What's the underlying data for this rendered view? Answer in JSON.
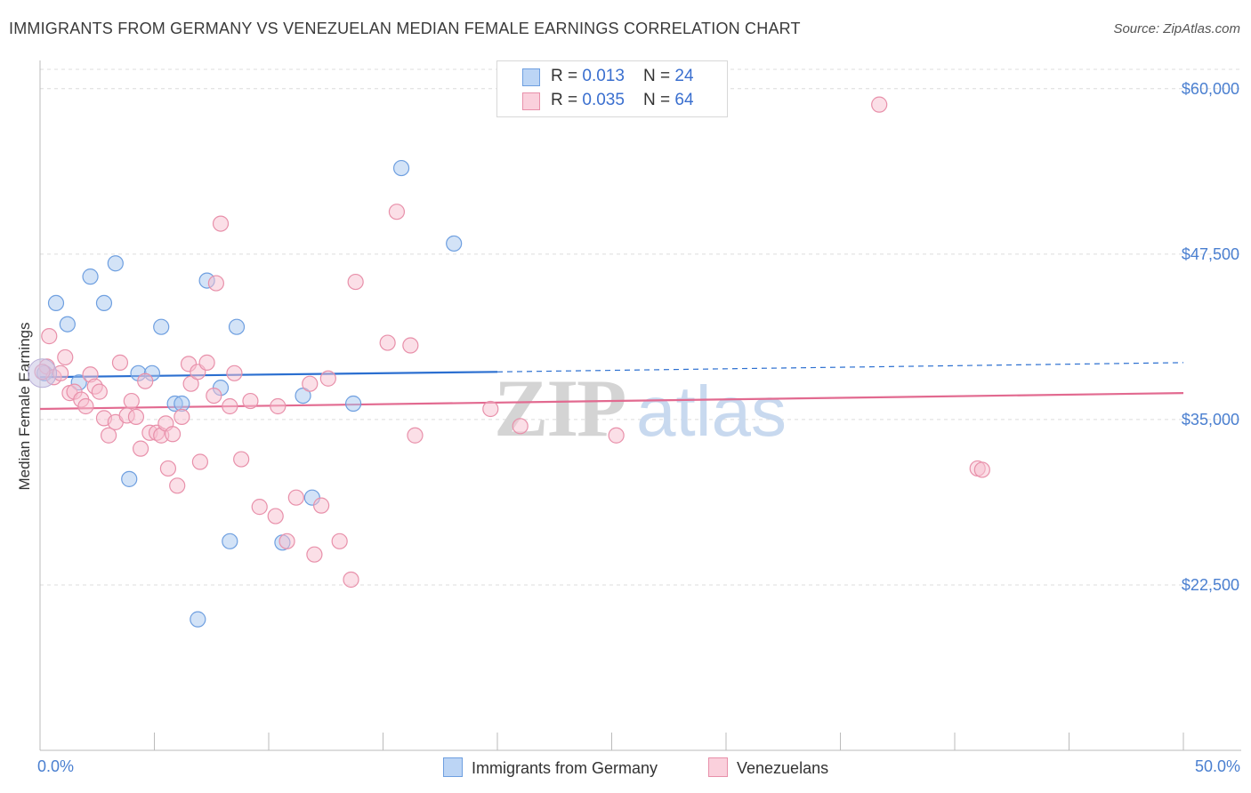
{
  "title": "IMMIGRANTS FROM GERMANY VS VENEZUELAN MEDIAN FEMALE EARNINGS CORRELATION CHART",
  "source": "Source: ZipAtlas.com",
  "watermark": {
    "zip": "ZIP",
    "atlas": "atlas"
  },
  "legend": {
    "rows": [
      {
        "r_label": "R = ",
        "r_value": "0.013",
        "n_label": "N = ",
        "n_value": "24",
        "color": "#a8c8f0",
        "border": "#6e9fe0"
      },
      {
        "r_label": "R = ",
        "r_value": "0.035",
        "n_label": "N = ",
        "n_value": "64",
        "color": "#f8c0d0",
        "border": "#e890aa"
      }
    ]
  },
  "bottom_legend": [
    {
      "label": "Immigrants from Germany",
      "color": "#bcd5f5",
      "border": "#6e9fe0"
    },
    {
      "label": "Venezuelans",
      "color": "#fad0dc",
      "border": "#e890aa"
    }
  ],
  "chart_data": {
    "type": "scatter",
    "title": "IMMIGRANTS FROM GERMANY VS VENEZUELAN MEDIAN FEMALE EARNINGS CORRELATION CHART",
    "xlabel": "",
    "ylabel": "Median Female Earnings",
    "xlim": [
      0,
      50
    ],
    "ylim": [
      10000,
      62000
    ],
    "x_tick_labels": [
      "0.0%",
      "50.0%"
    ],
    "y_ticks": [
      22500,
      35000,
      47500,
      60000
    ],
    "y_tick_labels": [
      "$22,500",
      "$35,000",
      "$47,500",
      "$60,000"
    ],
    "grid": true,
    "legend_position": "top-center",
    "series": [
      {
        "name": "Immigrants from Germany",
        "color": "#6e9fe0",
        "fill": "#a8c8f0",
        "trend": {
          "x": [
            0,
            20
          ],
          "y": [
            38200,
            38600
          ],
          "dashed_to": [
            50,
            39300
          ],
          "color": "#2b6fd0"
        },
        "points": [
          [
            0.2,
            38500
          ],
          [
            0.7,
            43800
          ],
          [
            1.2,
            42200
          ],
          [
            1.7,
            37800
          ],
          [
            2.2,
            45800
          ],
          [
            2.8,
            43800
          ],
          [
            3.3,
            46800
          ],
          [
            3.9,
            30500
          ],
          [
            4.3,
            38500
          ],
          [
            4.9,
            38500
          ],
          [
            5.3,
            42000
          ],
          [
            5.9,
            36200
          ],
          [
            6.2,
            36200
          ],
          [
            6.9,
            19900
          ],
          [
            7.3,
            45500
          ],
          [
            7.9,
            37400
          ],
          [
            8.3,
            25800
          ],
          [
            8.6,
            42000
          ],
          [
            10.6,
            25700
          ],
          [
            11.5,
            36800
          ],
          [
            11.9,
            29100
          ],
          [
            13.7,
            36200
          ],
          [
            15.8,
            54000
          ],
          [
            18.1,
            48300
          ]
        ]
      },
      {
        "name": "Venezuelans",
        "color": "#e890aa",
        "fill": "#f8c0d0",
        "trend": {
          "x": [
            0,
            50
          ],
          "y": [
            35800,
            37000
          ],
          "color": "#e26a90"
        },
        "points": [
          [
            0.3,
            39000
          ],
          [
            0.4,
            41300
          ],
          [
            0.6,
            38200
          ],
          [
            0.9,
            38500
          ],
          [
            1.1,
            39700
          ],
          [
            1.3,
            37000
          ],
          [
            1.5,
            37100
          ],
          [
            1.8,
            36500
          ],
          [
            2.0,
            36000
          ],
          [
            2.2,
            38400
          ],
          [
            2.4,
            37500
          ],
          [
            2.6,
            37100
          ],
          [
            2.8,
            35100
          ],
          [
            3.0,
            33800
          ],
          [
            3.3,
            34800
          ],
          [
            3.5,
            39300
          ],
          [
            3.8,
            35300
          ],
          [
            4.0,
            36400
          ],
          [
            4.2,
            35200
          ],
          [
            4.4,
            32800
          ],
          [
            4.6,
            37900
          ],
          [
            4.8,
            34000
          ],
          [
            5.1,
            34000
          ],
          [
            5.3,
            33800
          ],
          [
            5.5,
            34700
          ],
          [
            5.6,
            31300
          ],
          [
            5.8,
            33900
          ],
          [
            6.0,
            30000
          ],
          [
            6.2,
            35200
          ],
          [
            6.5,
            39200
          ],
          [
            6.6,
            37700
          ],
          [
            6.9,
            38600
          ],
          [
            7.0,
            31800
          ],
          [
            7.3,
            39300
          ],
          [
            7.6,
            36800
          ],
          [
            7.9,
            49800
          ],
          [
            7.7,
            45300
          ],
          [
            8.3,
            36000
          ],
          [
            8.5,
            38500
          ],
          [
            8.8,
            32000
          ],
          [
            9.2,
            36400
          ],
          [
            9.6,
            28400
          ],
          [
            10.3,
            27700
          ],
          [
            10.4,
            36000
          ],
          [
            10.8,
            25800
          ],
          [
            11.2,
            29100
          ],
          [
            11.8,
            37700
          ],
          [
            12.0,
            24800
          ],
          [
            12.3,
            28500
          ],
          [
            12.6,
            38100
          ],
          [
            13.1,
            25800
          ],
          [
            13.6,
            22900
          ],
          [
            13.8,
            45400
          ],
          [
            15.2,
            40800
          ],
          [
            15.6,
            50700
          ],
          [
            16.2,
            40600
          ],
          [
            16.4,
            33800
          ],
          [
            19.7,
            35800
          ],
          [
            21.0,
            34500
          ],
          [
            25.2,
            33800
          ],
          [
            36.7,
            58800
          ],
          [
            41.0,
            31300
          ],
          [
            41.2,
            31200
          ],
          [
            0.1,
            38600
          ]
        ]
      }
    ]
  }
}
